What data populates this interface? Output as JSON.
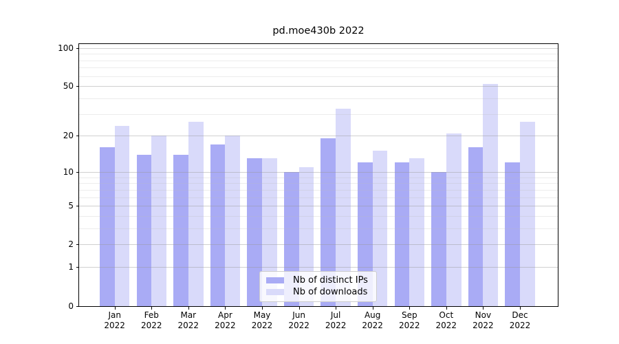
{
  "chart_data": {
    "type": "bar",
    "title": "pd.moe430b 2022",
    "categories": [
      {
        "month": "Jan",
        "year": "2022"
      },
      {
        "month": "Feb",
        "year": "2022"
      },
      {
        "month": "Mar",
        "year": "2022"
      },
      {
        "month": "Apr",
        "year": "2022"
      },
      {
        "month": "May",
        "year": "2022"
      },
      {
        "month": "Jun",
        "year": "2022"
      },
      {
        "month": "Jul",
        "year": "2022"
      },
      {
        "month": "Aug",
        "year": "2022"
      },
      {
        "month": "Sep",
        "year": "2022"
      },
      {
        "month": "Oct",
        "year": "2022"
      },
      {
        "month": "Nov",
        "year": "2022"
      },
      {
        "month": "Dec",
        "year": "2022"
      }
    ],
    "series": [
      {
        "name": "Nb of distinct IPs",
        "color": "#a9abf5",
        "values": [
          16,
          14,
          14,
          17,
          13,
          10,
          19,
          12,
          12,
          10,
          16,
          12
        ]
      },
      {
        "name": "Nb of downloads",
        "color": "#d9dafa",
        "values": [
          24,
          20,
          26,
          20,
          13,
          11,
          33,
          15,
          13,
          21,
          52,
          26
        ]
      }
    ],
    "y_axis": {
      "scale": "log1p",
      "ticks": [
        100,
        50,
        20,
        10,
        5,
        2,
        1,
        0
      ],
      "minor_ticks": [
        90,
        80,
        70,
        60,
        40,
        30,
        9,
        8,
        7,
        6,
        4,
        3
      ],
      "range": [
        0,
        108
      ]
    },
    "grid": true,
    "legend_position": "lower center"
  }
}
